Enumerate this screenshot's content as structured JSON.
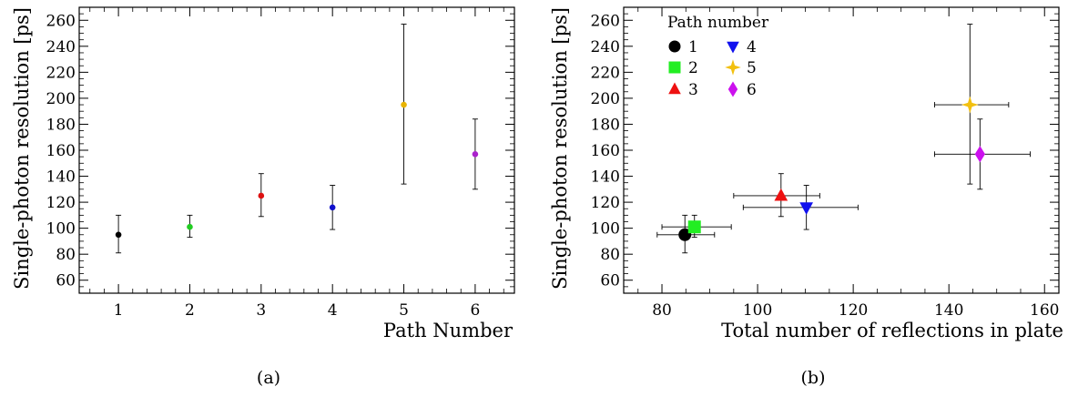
{
  "chart_data": [
    {
      "type": "scatter",
      "panel_label": "(a)",
      "xlabel": "Path Number",
      "ylabel": "Single-photon resolution [ps]",
      "xlim": [
        0.45,
        6.55
      ],
      "ylim": [
        50,
        270
      ],
      "xticks": [
        1,
        2,
        3,
        4,
        5,
        6
      ],
      "yticks": [
        60,
        80,
        100,
        120,
        140,
        160,
        180,
        200,
        220,
        240,
        260
      ],
      "grid": false,
      "points": [
        {
          "x": 1,
          "y": 95,
          "yerr_low": 81,
          "yerr_high": 110,
          "color": "#000000",
          "marker": "dot"
        },
        {
          "x": 2,
          "y": 101,
          "yerr_low": 93,
          "yerr_high": 110,
          "color": "#22cc22",
          "marker": "dot"
        },
        {
          "x": 3,
          "y": 125,
          "yerr_low": 109,
          "yerr_high": 142,
          "color": "#dd1111",
          "marker": "dot"
        },
        {
          "x": 4,
          "y": 116,
          "yerr_low": 99,
          "yerr_high": 133,
          "color": "#1111cc",
          "marker": "dot"
        },
        {
          "x": 5,
          "y": 195,
          "yerr_low": 134,
          "yerr_high": 257,
          "color": "#e8b400",
          "marker": "dot"
        },
        {
          "x": 6,
          "y": 157,
          "yerr_low": 130,
          "yerr_high": 184,
          "color": "#aa22cc",
          "marker": "dot"
        }
      ]
    },
    {
      "type": "scatter",
      "panel_label": "(b)",
      "xlabel": "Total number of reflections in plate",
      "ylabel": "Single-photon resolution [ps]",
      "xlim": [
        72,
        163
      ],
      "ylim": [
        50,
        270
      ],
      "xticks": [
        80,
        100,
        120,
        140,
        160
      ],
      "yticks": [
        60,
        80,
        100,
        120,
        140,
        160,
        180,
        200,
        220,
        240,
        260
      ],
      "grid": false,
      "legend": {
        "title": "Path number",
        "placement": "top-left",
        "entries": [
          "1",
          "2",
          "3",
          "4",
          "5",
          "6"
        ]
      },
      "series": [
        {
          "name": "1",
          "color": "#000000",
          "marker": "circle",
          "x": 84.8,
          "y": 95,
          "xerr_low": 79,
          "xerr_high": 91,
          "yerr_low": 81,
          "yerr_high": 110
        },
        {
          "name": "2",
          "color": "#22ee22",
          "marker": "square",
          "x": 86.8,
          "y": 101,
          "xerr_low": 80,
          "xerr_high": 94.5,
          "yerr_low": 93,
          "yerr_high": 110
        },
        {
          "name": "3",
          "color": "#ee1111",
          "marker": "triangle-up",
          "x": 104.9,
          "y": 125,
          "xerr_low": 95,
          "xerr_high": 113,
          "yerr_low": 109,
          "yerr_high": 142
        },
        {
          "name": "4",
          "color": "#1111ee",
          "marker": "triangle-down",
          "x": 110.2,
          "y": 116,
          "xerr_low": 97,
          "xerr_high": 121,
          "yerr_low": 99,
          "yerr_high": 133
        },
        {
          "name": "5",
          "color": "#f2c010",
          "marker": "star",
          "x": 144.4,
          "y": 195,
          "xerr_low": 137,
          "xerr_high": 152.5,
          "yerr_low": 134,
          "yerr_high": 257
        },
        {
          "name": "6",
          "color": "#cc11ee",
          "marker": "diamond",
          "x": 146.5,
          "y": 157,
          "xerr_low": 137,
          "xerr_high": 157,
          "yerr_low": 130,
          "yerr_high": 184
        }
      ]
    }
  ]
}
